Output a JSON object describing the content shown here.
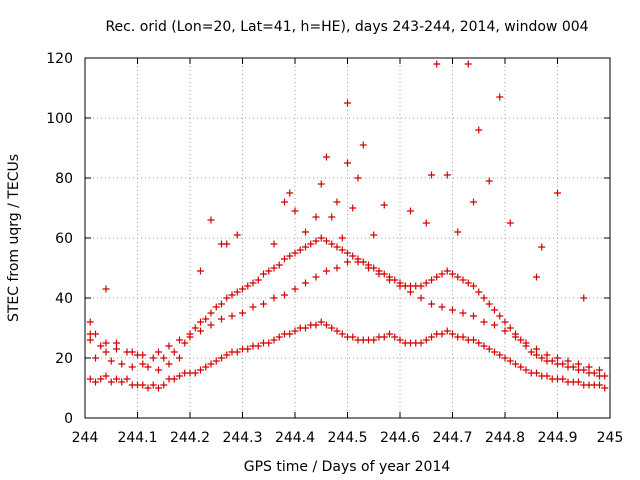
{
  "colors": {
    "points": "#d40000"
  },
  "chart_data": {
    "type": "scatter",
    "title": "Rec. orid (Lon=20, Lat=41, h=HE), days 243-244, 2014, window 004",
    "xlabel": "GPS time / Days of year 2014",
    "ylabel": "STEC from uqrg / TECUs",
    "xlim": [
      244,
      245
    ],
    "ylim": [
      0,
      120
    ],
    "grid": true,
    "marker": "plus",
    "xticks": [
      244,
      244.1,
      244.2,
      244.3,
      244.4,
      244.5,
      244.6,
      244.7,
      244.8,
      244.9,
      245
    ],
    "xtick_labels": [
      "244",
      "244.1",
      "244.2",
      "244.3",
      "244.4",
      "244.5",
      "244.6",
      "244.7",
      "244.8",
      "244.9",
      "245"
    ],
    "yticks": [
      0,
      20,
      40,
      60,
      80,
      100,
      120
    ],
    "ytick_labels": [
      "0",
      "20",
      "40",
      "60",
      "80",
      "100",
      "120"
    ],
    "x": [
      244.01,
      244.01,
      244.01,
      244.02,
      244.02,
      244.03,
      244.03,
      244.04,
      244.04,
      244.05,
      244.05,
      244.06,
      244.06,
      244.07,
      244.07,
      244.08,
      244.08,
      244.09,
      244.09,
      244.1,
      244.1,
      244.11,
      244.11,
      244.12,
      244.12,
      244.13,
      244.13,
      244.14,
      244.14,
      244.15,
      244.15,
      244.16,
      244.16,
      244.17,
      244.17,
      244.18,
      244.18,
      244.19,
      244.19,
      244.2,
      244.2,
      244.21,
      244.21,
      244.22,
      244.22,
      244.23,
      244.23,
      244.24,
      244.24,
      244.25,
      244.25,
      244.26,
      244.26,
      244.27,
      244.27,
      244.28,
      244.28,
      244.29,
      244.29,
      244.3,
      244.3,
      244.31,
      244.31,
      244.32,
      244.32,
      244.33,
      244.33,
      244.34,
      244.34,
      244.35,
      244.35,
      244.36,
      244.36,
      244.37,
      244.37,
      244.38,
      244.38,
      244.39,
      244.39,
      244.4,
      244.4,
      244.41,
      244.41,
      244.42,
      244.42,
      244.43,
      244.43,
      244.44,
      244.44,
      244.45,
      244.45,
      244.46,
      244.46,
      244.47,
      244.47,
      244.48,
      244.48,
      244.49,
      244.49,
      244.5,
      244.5,
      244.51,
      244.51,
      244.52,
      244.52,
      244.53,
      244.53,
      244.54,
      244.54,
      244.55,
      244.55,
      244.56,
      244.56,
      244.57,
      244.57,
      244.58,
      244.58,
      244.59,
      244.59,
      244.6,
      244.6,
      244.61,
      244.61,
      244.62,
      244.62,
      244.63,
      244.63,
      244.64,
      244.64,
      244.65,
      244.65,
      244.66,
      244.66,
      244.67,
      244.67,
      244.68,
      244.68,
      244.69,
      244.69,
      244.7,
      244.7,
      244.71,
      244.71,
      244.72,
      244.72,
      244.73,
      244.73,
      244.74,
      244.74,
      244.75,
      244.75,
      244.76,
      244.76,
      244.77,
      244.77,
      244.78,
      244.78,
      244.79,
      244.79,
      244.8,
      244.8,
      244.81,
      244.81,
      244.82,
      244.82,
      244.83,
      244.83,
      244.84,
      244.84,
      244.85,
      244.85,
      244.86,
      244.86,
      244.87,
      244.87,
      244.88,
      244.88,
      244.89,
      244.89,
      244.9,
      244.9,
      244.91,
      244.91,
      244.92,
      244.92,
      244.93,
      244.93,
      244.94,
      244.94,
      244.95,
      244.95,
      244.96,
      244.96,
      244.97,
      244.97,
      244.98,
      244.98,
      244.99,
      244.99,
      244.01,
      244.02,
      244.04,
      244.06,
      244.09,
      244.11,
      244.14,
      244.16,
      244.18,
      244.2,
      244.22,
      244.24,
      244.26,
      244.28,
      244.3,
      244.32,
      244.34,
      244.36,
      244.38,
      244.4,
      244.42,
      244.44,
      244.46,
      244.48,
      244.5,
      244.52,
      244.54,
      244.56,
      244.58,
      244.6,
      244.62,
      244.64,
      244.66,
      244.68,
      244.7,
      244.72,
      244.74,
      244.76,
      244.78,
      244.8,
      244.82,
      244.84,
      244.86,
      244.88,
      244.9,
      244.92,
      244.94,
      244.96,
      244.98,
      244.04,
      244.22,
      244.24,
      244.26,
      244.27,
      244.29,
      244.36,
      244.38,
      244.39,
      244.4,
      244.42,
      244.44,
      244.45,
      244.46,
      244.47,
      244.48,
      244.49,
      244.5,
      244.5,
      244.51,
      244.52,
      244.53,
      244.55,
      244.57,
      244.62,
      244.65,
      244.66,
      244.67,
      244.69,
      244.71,
      244.73,
      244.74,
      244.75,
      244.77,
      244.79,
      244.81,
      244.86,
      244.87,
      244.9,
      244.95
    ],
    "y": [
      13,
      26,
      28,
      12,
      20,
      13,
      24,
      14,
      22,
      12,
      19,
      13,
      25,
      12,
      18,
      13,
      22,
      11,
      17,
      11,
      21,
      11,
      18,
      10,
      17,
      11,
      20,
      10,
      16,
      11,
      20,
      13,
      18,
      13,
      22,
      14,
      20,
      15,
      25,
      15,
      28,
      15,
      30,
      16,
      32,
      17,
      33,
      18,
      35,
      19,
      37,
      20,
      38,
      21,
      40,
      22,
      41,
      22,
      42,
      23,
      43,
      23,
      44,
      24,
      45,
      24,
      46,
      25,
      48,
      25,
      49,
      26,
      50,
      27,
      51,
      28,
      53,
      28,
      54,
      29,
      55,
      30,
      56,
      30,
      57,
      31,
      58,
      31,
      59,
      32,
      60,
      31,
      59,
      30,
      58,
      29,
      57,
      28,
      56,
      27,
      55,
      27,
      54,
      26,
      53,
      26,
      52,
      26,
      51,
      26,
      50,
      27,
      49,
      27,
      48,
      28,
      47,
      27,
      46,
      26,
      45,
      25,
      44,
      25,
      44,
      25,
      44,
      25,
      44,
      26,
      45,
      27,
      46,
      28,
      47,
      28,
      48,
      29,
      49,
      28,
      48,
      27,
      47,
      27,
      46,
      26,
      45,
      26,
      44,
      25,
      42,
      24,
      40,
      23,
      38,
      22,
      36,
      21,
      34,
      20,
      32,
      19,
      30,
      18,
      28,
      17,
      26,
      16,
      24,
      15,
      22,
      15,
      21,
      14,
      20,
      14,
      19,
      13,
      19,
      13,
      18,
      13,
      18,
      12,
      17,
      12,
      17,
      12,
      16,
      11,
      16,
      11,
      15,
      11,
      15,
      11,
      14,
      10,
      14,
      32,
      28,
      25,
      23,
      22,
      21,
      22,
      24,
      26,
      27,
      29,
      31,
      33,
      34,
      35,
      37,
      38,
      40,
      41,
      43,
      45,
      47,
      49,
      50,
      52,
      52,
      50,
      48,
      46,
      44,
      42,
      40,
      38,
      37,
      36,
      35,
      34,
      32,
      31,
      29,
      27,
      25,
      23,
      21,
      20,
      19,
      18,
      17,
      16,
      43,
      49,
      66,
      58,
      58,
      61,
      58,
      72,
      75,
      69,
      62,
      67,
      78,
      87,
      67,
      72,
      60,
      105,
      85,
      70,
      80,
      91,
      61,
      71,
      69,
      65,
      81,
      118,
      81,
      62,
      118,
      72,
      96,
      79,
      107,
      65,
      47,
      57,
      75,
      40
    ]
  }
}
